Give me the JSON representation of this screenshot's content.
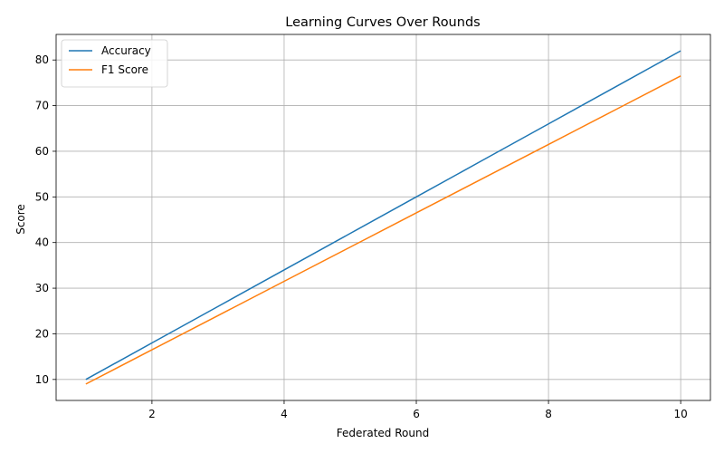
{
  "chart_data": {
    "type": "line",
    "title": "Learning Curves Over Rounds",
    "xlabel": "Federated Round",
    "ylabel": "Score",
    "x": [
      1,
      2,
      3,
      4,
      5,
      6,
      7,
      8,
      9,
      10
    ],
    "xlim": [
      0.55,
      10.45
    ],
    "ylim": [
      5.4,
      85.6
    ],
    "xticks": [
      2,
      4,
      6,
      8,
      10
    ],
    "yticks": [
      10,
      20,
      30,
      40,
      50,
      60,
      70,
      80
    ],
    "grid": true,
    "legend_position": "top-left",
    "series": [
      {
        "name": "Accuracy",
        "color": "#1f77b4",
        "values": [
          10,
          18,
          26,
          34,
          42,
          50,
          58,
          66,
          74,
          82
        ]
      },
      {
        "name": "F1 Score",
        "color": "#ff7f0e",
        "values": [
          9,
          16.5,
          24,
          31.5,
          39,
          46.5,
          54,
          61.5,
          69,
          76.5
        ]
      }
    ]
  }
}
